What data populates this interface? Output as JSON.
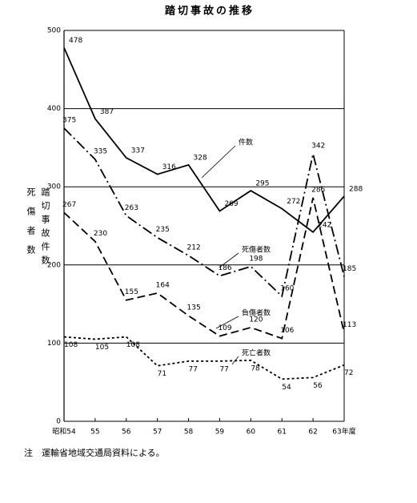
{
  "chart_data": {
    "type": "line",
    "title": "踏切事故の推移",
    "ylabels": [
      "死傷者数",
      "踏切事故件数"
    ],
    "note": "注　運輸省地域交通局資料による。",
    "categories": [
      "昭和54",
      "55",
      "56",
      "57",
      "58",
      "59",
      "60",
      "61",
      "62",
      "63年度"
    ],
    "series": [
      {
        "name": "件数",
        "color": "#000000",
        "line_style": "solid",
        "values": [
          478,
          387,
          337,
          316,
          328,
          269,
          295,
          272,
          242,
          288
        ]
      },
      {
        "name": "死傷者数",
        "color": "#000000",
        "line_style": "dashdot",
        "values": [
          375,
          335,
          263,
          235,
          212,
          186,
          198,
          160,
          342,
          185
        ]
      },
      {
        "name": "負傷者数",
        "color": "#000000",
        "line_style": "dashed",
        "values": [
          267,
          230,
          155,
          164,
          135,
          109,
          120,
          106,
          286,
          113
        ]
      },
      {
        "name": "死亡者数",
        "color": "#000000",
        "line_style": "dotted",
        "values": [
          108,
          105,
          108,
          71,
          77,
          77,
          78,
          54,
          56,
          72
        ]
      }
    ],
    "ylim": [
      0,
      500
    ],
    "yticks": [
      0,
      100,
      200,
      300,
      400,
      500
    ],
    "grid": true
  }
}
